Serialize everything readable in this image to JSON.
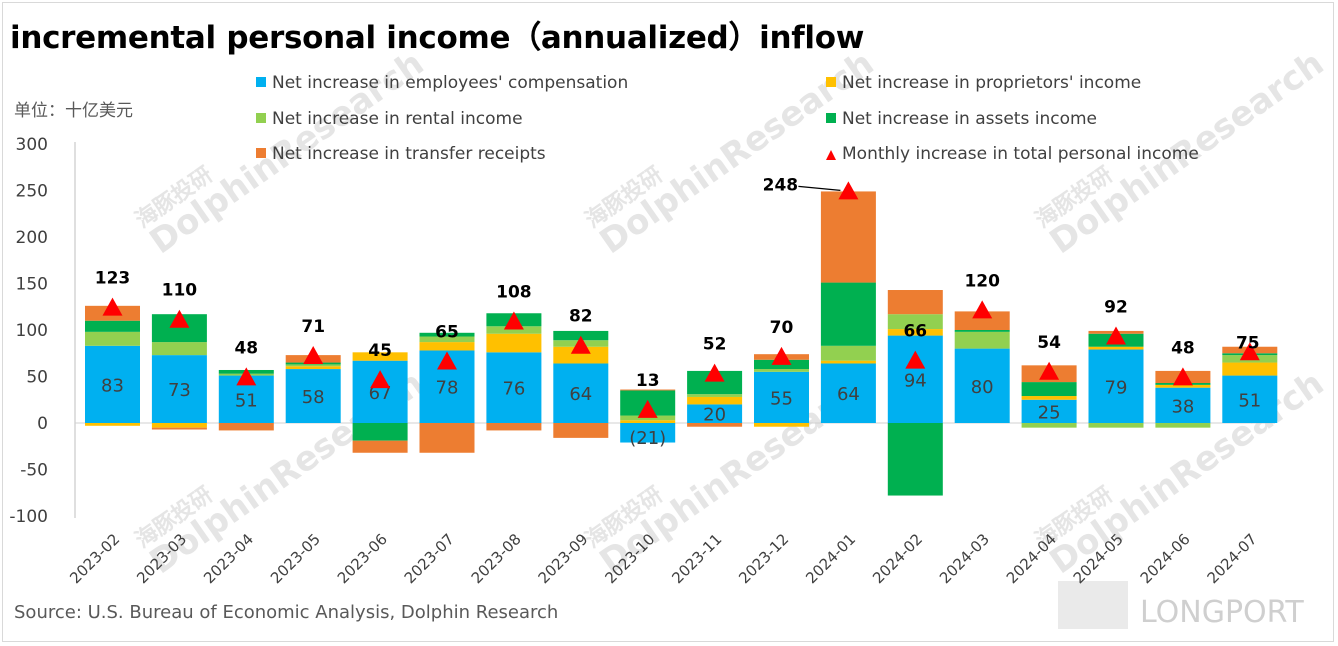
{
  "title": "incremental personal income（annualized）inflow",
  "unit_label": "单位：十亿美元",
  "source": "Source: U.S. Bureau of Economic Analysis, Dolphin Research",
  "watermark": {
    "brand_cn": "海豚投研",
    "brand_en": "DolphinResearch",
    "logo": "LONGPORT"
  },
  "chart_data": {
    "type": "bar",
    "stacked": true,
    "title": "incremental personal income（annualized）inflow",
    "ylabel": "单位：十亿美元",
    "ylim": [
      -100,
      300
    ],
    "yticks": [
      -100,
      -50,
      0,
      50,
      100,
      150,
      200,
      250,
      300
    ],
    "categories": [
      "2023-02",
      "2023-03",
      "2023-04",
      "2023-05",
      "2023-06",
      "2023-07",
      "2023-08",
      "2023-09",
      "2023-10",
      "2023-11",
      "2023-12",
      "2024-01",
      "2024-02",
      "2024-03",
      "2024-04",
      "2024-05",
      "2024-06",
      "2024-07"
    ],
    "series": [
      {
        "name": "Net increase in employees' compensation",
        "color": "#00b0f0",
        "values": [
          83,
          73,
          51,
          58,
          67,
          78,
          76,
          64,
          -21,
          20,
          55,
          64,
          94,
          80,
          25,
          79,
          38,
          51
        ]
      },
      {
        "name": "Net increase in proprietors' income",
        "color": "#ffc000",
        "values": [
          -3,
          -5,
          0,
          3,
          9,
          9,
          20,
          18,
          3,
          8,
          -4,
          3,
          7,
          0,
          4,
          3,
          3,
          14
        ]
      },
      {
        "name": "Net increase in rental income",
        "color": "#92d050",
        "values": [
          15,
          14,
          2,
          2,
          0,
          6,
          8,
          7,
          5,
          3,
          3,
          16,
          16,
          18,
          -5,
          -5,
          -5,
          8
        ]
      },
      {
        "name": "Net increase in assets income",
        "color": "#00b050",
        "values": [
          12,
          30,
          4,
          2,
          -19,
          4,
          14,
          10,
          27,
          25,
          10,
          68,
          -78,
          2,
          15,
          14,
          2,
          2
        ]
      },
      {
        "name": "Net increase in transfer receipts",
        "color": "#ed7d31",
        "values": [
          16,
          -2,
          -8,
          8,
          -13,
          -32,
          -8,
          -16,
          1,
          -4,
          6,
          98,
          26,
          20,
          18,
          3,
          13,
          7
        ]
      }
    ],
    "totals": {
      "name": "Monthly increase in total personal income",
      "color": "#ff0000",
      "values": [
        123,
        110,
        48,
        71,
        45,
        65,
        108,
        82,
        13,
        52,
        70,
        248,
        66,
        120,
        54,
        92,
        48,
        75
      ]
    },
    "bar_labels": [
      "83",
      "73",
      "51",
      "58",
      "67",
      "78",
      "76",
      "64",
      "(21)",
      "20",
      "55",
      "64",
      "94",
      "80",
      "25",
      "79",
      "38",
      "51"
    ]
  }
}
